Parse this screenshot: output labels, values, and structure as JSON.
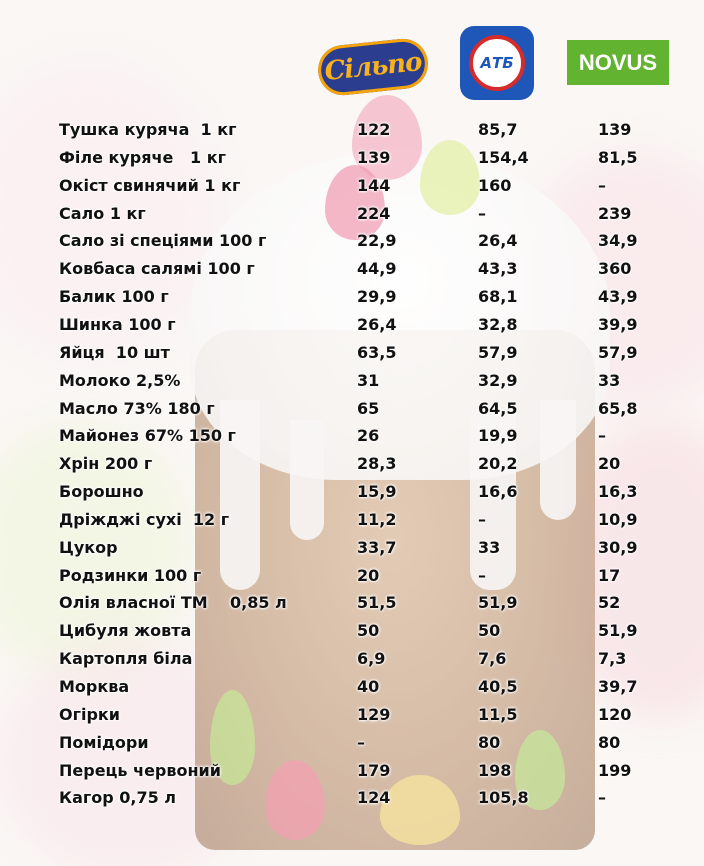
{
  "stores": [
    {
      "name": "Сільпо",
      "color": "#2a3d8f"
    },
    {
      "name": "АТБ",
      "color": "#1f57b8"
    },
    {
      "name": "NOVUS",
      "color": "#62b32f"
    }
  ],
  "rows": [
    {
      "product": "Тушка куряча  1 кг",
      "silpo": "122",
      "atb": "85,7",
      "novus": "139"
    },
    {
      "product": "Філе куряче   1 кг",
      "silpo": "139",
      "atb": "154,4",
      "novus": "81,5"
    },
    {
      "product": "Окіст свинячий 1 кг",
      "silpo": "144",
      "atb": "160",
      "novus": "–"
    },
    {
      "product": "Сало 1 кг",
      "silpo": "224",
      "atb": "–",
      "novus": "239"
    },
    {
      "product": "Сало зі спеціями 100 г",
      "silpo": "22,9",
      "atb": "26,4",
      "novus": "34,9"
    },
    {
      "product": "Ковбаса салямі 100 г",
      "silpo": "44,9",
      "atb": "43,3",
      "novus": "360"
    },
    {
      "product": "Балик 100 г",
      "silpo": "29,9",
      "atb": "68,1",
      "novus": "43,9"
    },
    {
      "product": "Шинка 100 г",
      "silpo": "26,4",
      "atb": "32,8",
      "novus": "39,9"
    },
    {
      "product": "Яйця  10 шт",
      "silpo": "63,5",
      "atb": "57,9",
      "novus": "57,9"
    },
    {
      "product": "Молоко 2,5%",
      "silpo": "31",
      "atb": "32,9",
      "novus": "33"
    },
    {
      "product": "Масло 73% 180 г",
      "silpo": "65",
      "atb": "64,5",
      "novus": "65,8"
    },
    {
      "product": "Майонез 67% 150 г",
      "silpo": "26",
      "atb": "19,9",
      "novus": "–"
    },
    {
      "product": "Хрін 200 г",
      "silpo": "28,3",
      "atb": "20,2",
      "novus": "20"
    },
    {
      "product": "Борошно",
      "silpo": "15,9",
      "atb": "16,6",
      "novus": "16,3"
    },
    {
      "product": "Дріжджі сухі  12 г",
      "silpo": "11,2",
      "atb": "–",
      "novus": "10,9"
    },
    {
      "product": "Цукор",
      "silpo": "33,7",
      "atb": "33",
      "novus": "30,9"
    },
    {
      "product": "Родзинки 100 г",
      "silpo": "20",
      "atb": "–",
      "novus": "17"
    },
    {
      "product": "Олія власної ТМ    0,85 л",
      "silpo": "51,5",
      "atb": "51,9",
      "novus": "52"
    },
    {
      "product": "Цибуля жовта",
      "silpo": "50",
      "atb": "50",
      "novus": "51,9"
    },
    {
      "product": "Картопля біла",
      "silpo": "6,9",
      "atb": "7,6",
      "novus": "7,3"
    },
    {
      "product": "Морква",
      "silpo": "40",
      "atb": "40,5",
      "novus": "39,7"
    },
    {
      "product": "Огірки",
      "silpo": "129",
      "atb": "11,5",
      "novus": "120"
    },
    {
      "product": "Помідори",
      "silpo": "–",
      "atb": "80",
      "novus": "80"
    },
    {
      "product": "Перець червоний",
      "silpo": "179",
      "atb": "198",
      "novus": "199"
    },
    {
      "product": "Кагор 0,75 л",
      "silpo": "124",
      "atb": "105,8",
      "novus": "–"
    }
  ]
}
